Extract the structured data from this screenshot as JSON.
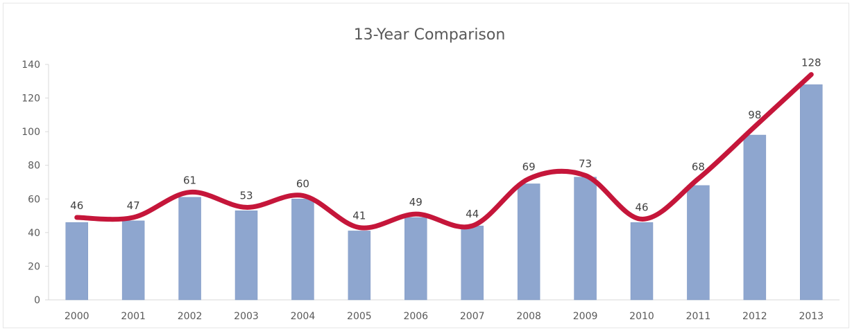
{
  "chart_data": {
    "type": "bar",
    "title": "13-Year Comparison",
    "xlabel": "",
    "ylabel": "",
    "categories": [
      "2000",
      "2001",
      "2002",
      "2003",
      "2004",
      "2005",
      "2006",
      "2007",
      "2008",
      "2009",
      "2010",
      "2011",
      "2012",
      "2013"
    ],
    "values": [
      46,
      47,
      61,
      53,
      60,
      41,
      49,
      44,
      69,
      73,
      46,
      68,
      98,
      128
    ],
    "overlay_line": {
      "type": "line",
      "smooth": true,
      "values": [
        49,
        49,
        64,
        55,
        62,
        43,
        51,
        44,
        72,
        74,
        48,
        72,
        103,
        134
      ]
    },
    "ylim": [
      0,
      140
    ],
    "yticks": [
      0,
      20,
      40,
      60,
      80,
      100,
      120,
      140
    ],
    "grid": false,
    "legend": "none",
    "colors": {
      "bar": "#8ea6cf",
      "bar_edge": "#7f98c4",
      "line": "#c5163a",
      "axis": "#d9d9d9",
      "text": "#595959"
    }
  }
}
